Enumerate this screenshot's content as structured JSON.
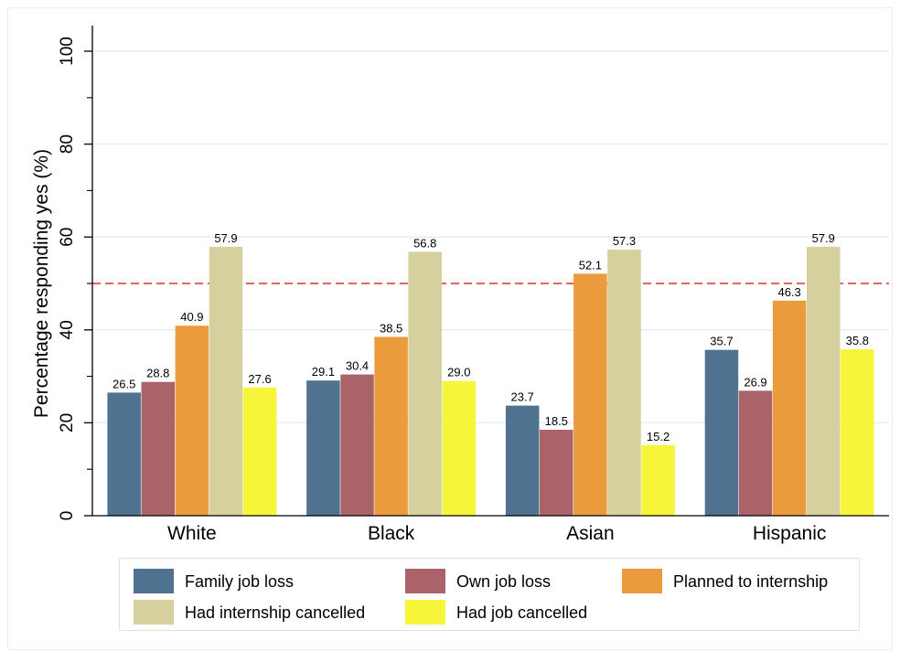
{
  "chart_data": {
    "type": "bar",
    "title": "",
    "xlabel": "",
    "ylabel": "Percentage responding yes (%)",
    "ylim": [
      0,
      100
    ],
    "yticks": [
      0,
      20,
      40,
      60,
      80,
      100
    ],
    "grid": true,
    "legend_position": "bottom",
    "categories": [
      "White",
      "Black",
      "Asian",
      "Hispanic"
    ],
    "reference_line": {
      "value": 50,
      "color": "#e0312f",
      "style": "dashed"
    },
    "series": [
      {
        "name": "Family job loss",
        "color": "#4f7290",
        "values": [
          26.5,
          29.1,
          23.7,
          35.7
        ],
        "labels": [
          "26.5",
          "29.1",
          "23.7",
          "35.7"
        ]
      },
      {
        "name": "Own job loss",
        "color": "#ab636a",
        "values": [
          28.8,
          30.4,
          18.5,
          26.9
        ],
        "labels": [
          "28.8",
          "30.4",
          "18.5",
          "26.9"
        ]
      },
      {
        "name": "Planned to internship",
        "color": "#eb9b3c",
        "values": [
          40.9,
          38.5,
          52.1,
          46.3
        ],
        "labels": [
          "40.9",
          "38.5",
          "52.1",
          "46.3"
        ]
      },
      {
        "name": "Had internship cancelled",
        "color": "#d5d09e",
        "values": [
          57.9,
          56.8,
          57.3,
          57.9
        ],
        "labels": [
          "57.9",
          "56.8",
          "57.3",
          "57.9"
        ]
      },
      {
        "name": "Had job cancelled",
        "color": "#f7f53a",
        "values": [
          27.6,
          29.0,
          15.2,
          35.8
        ],
        "labels": [
          "27.6",
          "29.0",
          "15.2",
          "35.8"
        ]
      }
    ]
  }
}
